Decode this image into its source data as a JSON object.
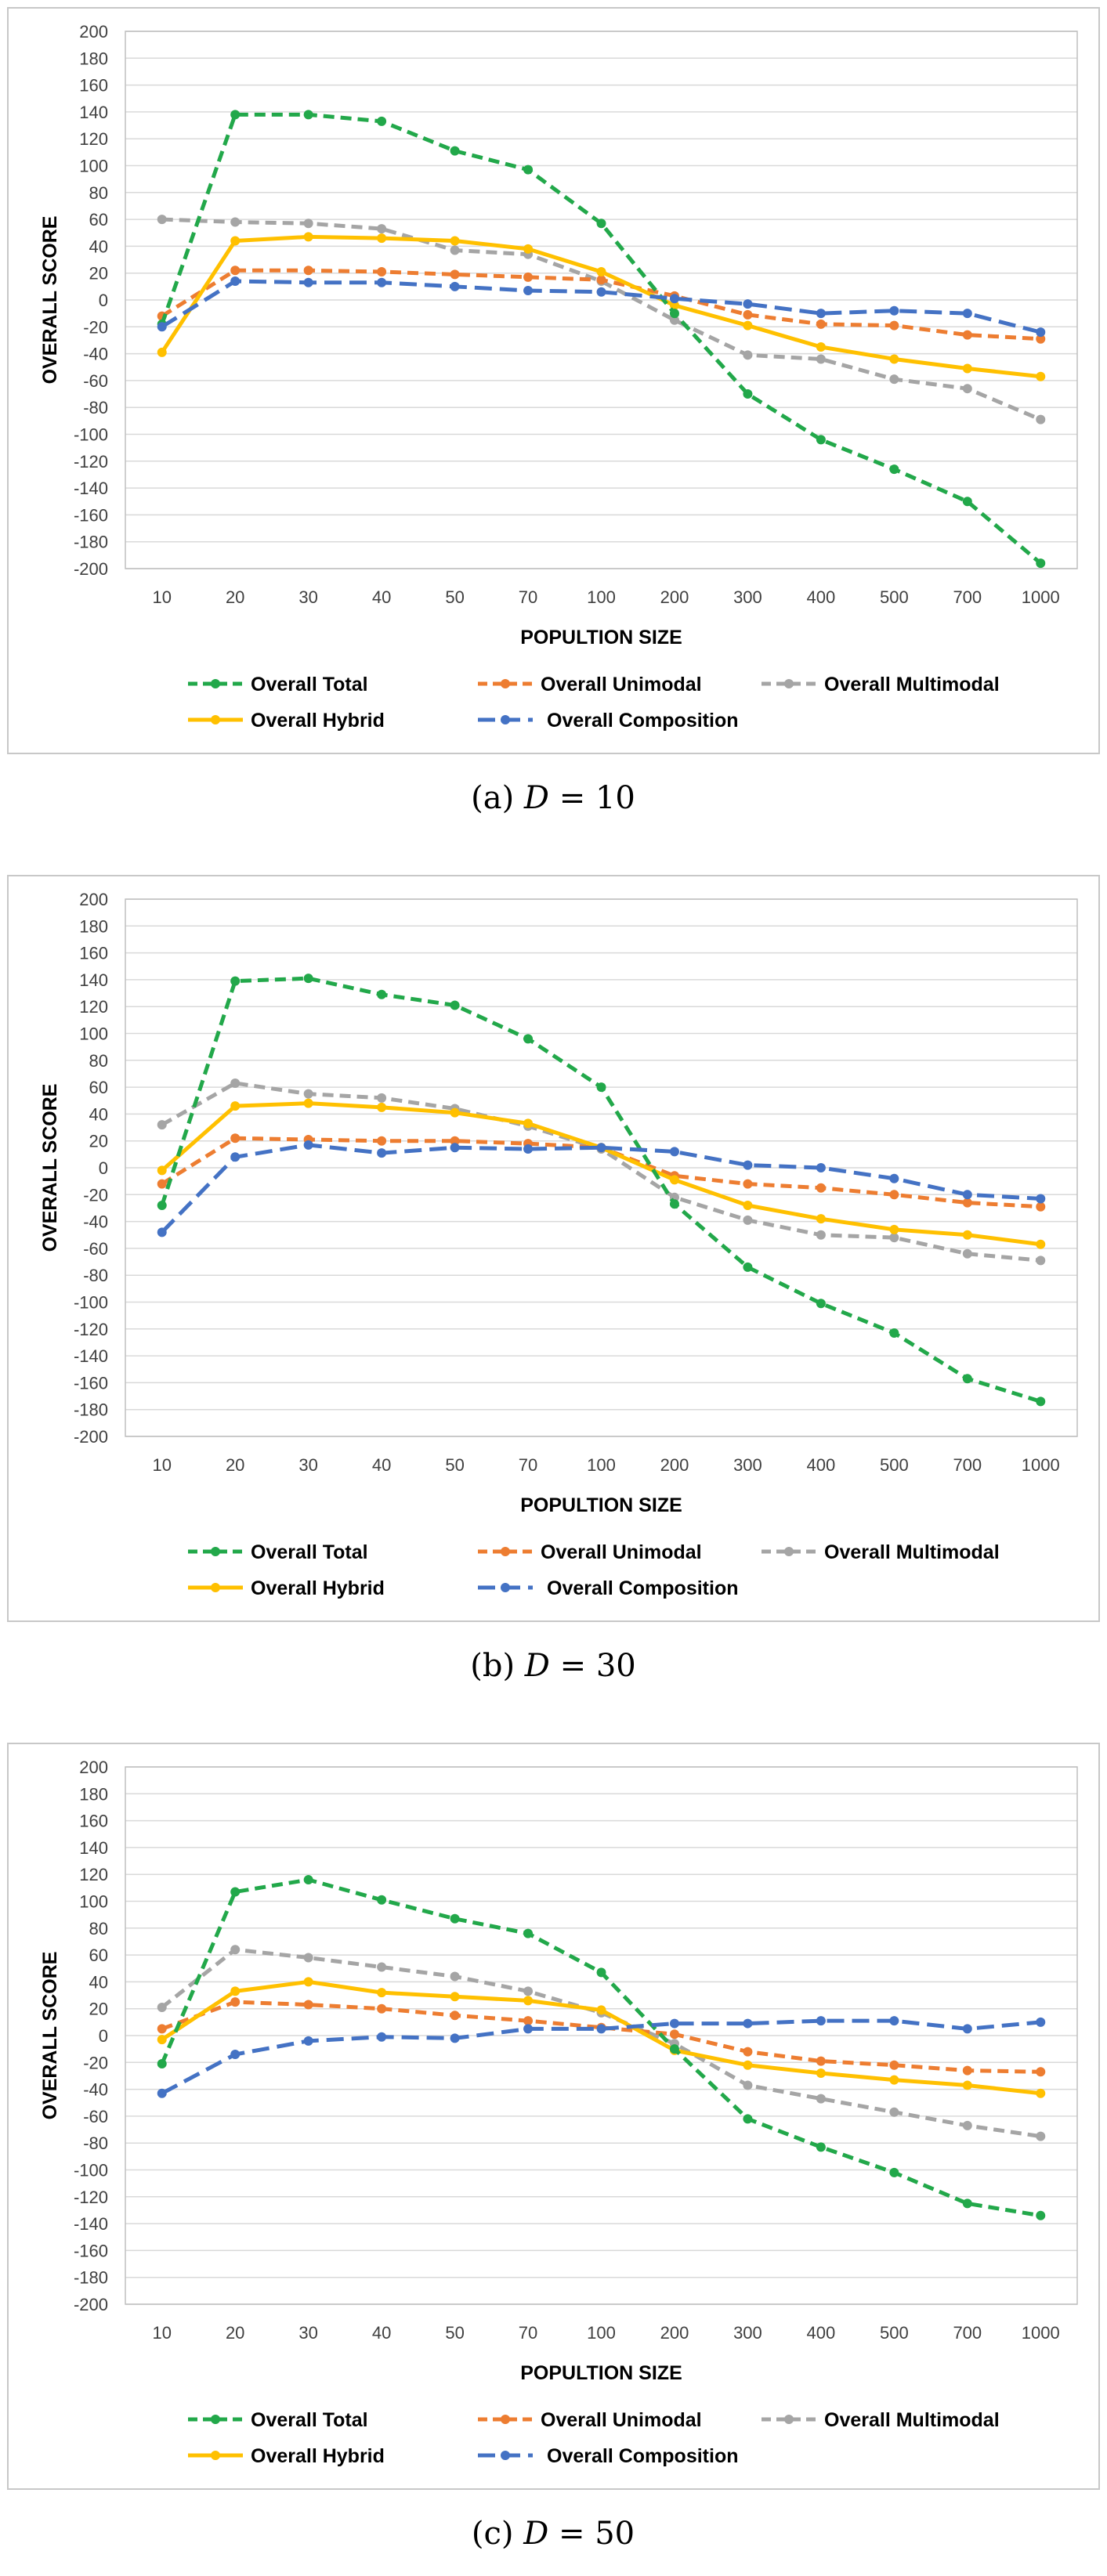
{
  "figure": {
    "panels": [
      {
        "caption_letter": "(a)",
        "caption_var": "D",
        "caption_eq": "= 10"
      },
      {
        "caption_letter": "(b)",
        "caption_var": "D",
        "caption_eq": "= 30"
      },
      {
        "caption_letter": "(c)",
        "caption_var": "D",
        "caption_eq": "= 50"
      }
    ]
  },
  "colors": {
    "total": "#22A84A",
    "unimodal": "#ED7D31",
    "multimodal": "#A5A5A5",
    "hybrid": "#FFC000",
    "composition": "#4472C4"
  },
  "chart_data": [
    {
      "type": "line",
      "title": "",
      "xlabel": "POPULTION SIZE",
      "ylabel": "OVERALL SCORE",
      "categories": [
        "10",
        "20",
        "30",
        "40",
        "50",
        "70",
        "100",
        "200",
        "300",
        "400",
        "500",
        "700",
        "1000"
      ],
      "ylim": [
        -200,
        200
      ],
      "yticks": [
        "200",
        "180",
        "160",
        "140",
        "120",
        "100",
        "80",
        "60",
        "40",
        "20",
        "0",
        "-20",
        "-40",
        "-60",
        "-80",
        "-100",
        "-120",
        "-140",
        "-160",
        "-180",
        "-200"
      ],
      "legend": "bottom",
      "series": [
        {
          "key": "total",
          "name": "Overall Total",
          "values": [
            -18,
            138,
            138,
            133,
            111,
            97,
            57,
            -10,
            -70,
            -104,
            -126,
            -150,
            -196
          ]
        },
        {
          "key": "unimodal",
          "name": "Overall Unimodal",
          "values": [
            -12,
            22,
            22,
            21,
            19,
            17,
            15,
            3,
            -11,
            -18,
            -19,
            -26,
            -29
          ]
        },
        {
          "key": "multimodal",
          "name": "Overall Multimodal",
          "values": [
            60,
            58,
            57,
            53,
            37,
            34,
            14,
            -15,
            -41,
            -44,
            -59,
            -66,
            -89
          ]
        },
        {
          "key": "hybrid",
          "name": "Overall Hybrid",
          "values": [
            -39,
            44,
            47,
            46,
            44,
            38,
            21,
            -4,
            -19,
            -35,
            -44,
            -51,
            -57
          ]
        },
        {
          "key": "composition",
          "name": "Overall Composition",
          "values": [
            -20,
            14,
            13,
            13,
            10,
            7,
            6,
            1,
            -3,
            -10,
            -8,
            -10,
            -24
          ]
        }
      ]
    },
    {
      "type": "line",
      "title": "",
      "xlabel": "POPULTION SIZE",
      "ylabel": "OVERALL SCORE",
      "categories": [
        "10",
        "20",
        "30",
        "40",
        "50",
        "70",
        "100",
        "200",
        "300",
        "400",
        "500",
        "700",
        "1000"
      ],
      "ylim": [
        -200,
        200
      ],
      "yticks": [
        "200",
        "180",
        "160",
        "140",
        "120",
        "100",
        "80",
        "60",
        "40",
        "20",
        "0",
        "-20",
        "-40",
        "-60",
        "-80",
        "-100",
        "-120",
        "-140",
        "-160",
        "-180",
        "-200"
      ],
      "legend": "bottom",
      "series": [
        {
          "key": "total",
          "name": "Overall Total",
          "values": [
            -28,
            139,
            141,
            129,
            121,
            96,
            60,
            -27,
            -74,
            -101,
            -123,
            -157,
            -174
          ]
        },
        {
          "key": "unimodal",
          "name": "Overall Unimodal",
          "values": [
            -12,
            22,
            21,
            20,
            20,
            18,
            15,
            -6,
            -12,
            -15,
            -20,
            -26,
            -29
          ]
        },
        {
          "key": "multimodal",
          "name": "Overall Multimodal",
          "values": [
            32,
            63,
            55,
            52,
            44,
            31,
            14,
            -22,
            -39,
            -50,
            -52,
            -64,
            -69
          ]
        },
        {
          "key": "hybrid",
          "name": "Overall Hybrid",
          "values": [
            -2,
            46,
            48,
            45,
            41,
            33,
            15,
            -9,
            -28,
            -38,
            -46,
            -50,
            -57
          ]
        },
        {
          "key": "composition",
          "name": "Overall Composition",
          "values": [
            -48,
            8,
            17,
            11,
            15,
            14,
            15,
            12,
            2,
            0,
            -8,
            -20,
            -23
          ]
        }
      ]
    },
    {
      "type": "line",
      "title": "",
      "xlabel": "POPULTION SIZE",
      "ylabel": "OVERALL SCORE",
      "categories": [
        "10",
        "20",
        "30",
        "40",
        "50",
        "70",
        "100",
        "200",
        "300",
        "400",
        "500",
        "700",
        "1000"
      ],
      "ylim": [
        -200,
        200
      ],
      "yticks": [
        "200",
        "180",
        "160",
        "140",
        "120",
        "100",
        "80",
        "60",
        "40",
        "20",
        "0",
        "-20",
        "-40",
        "-60",
        "-80",
        "-100",
        "-120",
        "-140",
        "-160",
        "-180",
        "-200"
      ],
      "legend": "bottom",
      "series": [
        {
          "key": "total",
          "name": "Overall Total",
          "values": [
            -21,
            107,
            116,
            101,
            87,
            76,
            47,
            -10,
            -62,
            -83,
            -102,
            -125,
            -134
          ]
        },
        {
          "key": "unimodal",
          "name": "Overall Unimodal",
          "values": [
            5,
            25,
            23,
            20,
            15,
            11,
            6,
            1,
            -12,
            -19,
            -22,
            -26,
            -27
          ]
        },
        {
          "key": "multimodal",
          "name": "Overall Multimodal",
          "values": [
            21,
            64,
            58,
            51,
            44,
            33,
            17,
            -6,
            -37,
            -47,
            -57,
            -67,
            -75
          ]
        },
        {
          "key": "hybrid",
          "name": "Overall Hybrid",
          "values": [
            -3,
            33,
            40,
            32,
            29,
            26,
            19,
            -11,
            -22,
            -28,
            -33,
            -37,
            -43
          ]
        },
        {
          "key": "composition",
          "name": "Overall Composition",
          "values": [
            -43,
            -14,
            -4,
            -1,
            -2,
            5,
            5,
            9,
            9,
            11,
            11,
            5,
            10
          ]
        }
      ]
    }
  ]
}
